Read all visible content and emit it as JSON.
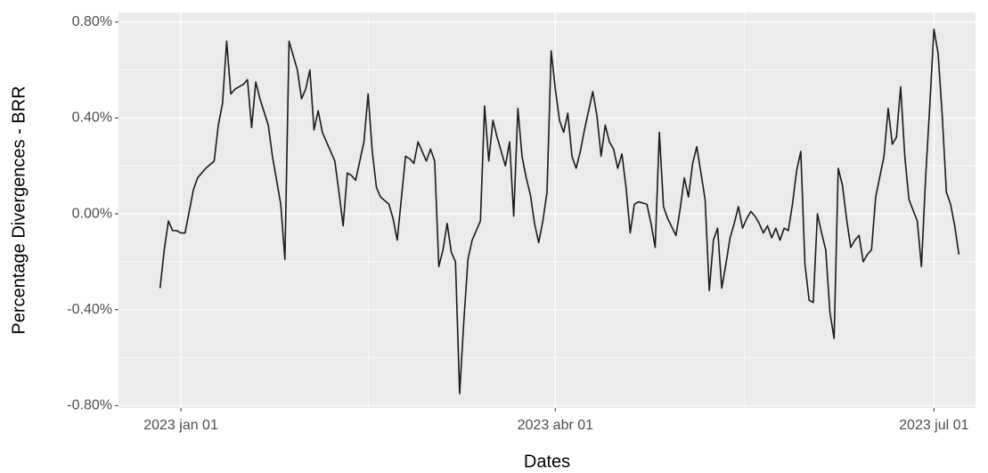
{
  "chart_data": {
    "type": "line",
    "x_label": "Dates",
    "y_label": "Percentage Divergences - BRR",
    "color": "#1a1a1a",
    "grid": true,
    "xlim": [
      "2022-12-17",
      "2023-07-11"
    ],
    "xticks": [
      {
        "value": "2023-01-01",
        "label": "2023 jan 01"
      },
      {
        "value": "2023-04-01",
        "label": "2023 abr 01"
      },
      {
        "value": "2023-07-01",
        "label": "2023 jul 01"
      }
    ],
    "ylim": [
      -0.81,
      0.84
    ],
    "yticks": [
      {
        "value": -0.8,
        "label": "-0.80%"
      },
      {
        "value": -0.4,
        "label": "-0.40%"
      },
      {
        "value": 0,
        "label": "0.00%"
      },
      {
        "value": 0.4,
        "label": "0.40%"
      },
      {
        "value": 0.8,
        "label": "0.80%"
      }
    ],
    "x": [
      "2022-12-27",
      "2022-12-28",
      "2022-12-29",
      "2022-12-30",
      "2022-12-31",
      "2023-01-01",
      "2023-01-02",
      "2023-01-04",
      "2023-01-05",
      "2023-01-07",
      "2023-01-09",
      "2023-01-10",
      "2023-01-11",
      "2023-01-12",
      "2023-01-13",
      "2023-01-14",
      "2023-01-16",
      "2023-01-17",
      "2023-01-18",
      "2023-01-19",
      "2023-01-20",
      "2023-01-22",
      "2023-01-23",
      "2023-01-25",
      "2023-01-26",
      "2023-01-27",
      "2023-01-29",
      "2023-01-30",
      "2023-01-31",
      "2023-02-01",
      "2023-02-02",
      "2023-02-03",
      "2023-02-04",
      "2023-02-05",
      "2023-02-07",
      "2023-02-08",
      "2023-02-09",
      "2023-02-10",
      "2023-02-11",
      "2023-02-12",
      "2023-02-14",
      "2023-02-15",
      "2023-02-16",
      "2023-02-17",
      "2023-02-18",
      "2023-02-20",
      "2023-02-21",
      "2023-02-22",
      "2023-02-24",
      "2023-02-25",
      "2023-02-26",
      "2023-02-27",
      "2023-02-28",
      "2023-03-01",
      "2023-03-02",
      "2023-03-03",
      "2023-03-04",
      "2023-03-05",
      "2023-03-06",
      "2023-03-07",
      "2023-03-08",
      "2023-03-09",
      "2023-03-10",
      "2023-03-11",
      "2023-03-12",
      "2023-03-14",
      "2023-03-15",
      "2023-03-16",
      "2023-03-17",
      "2023-03-18",
      "2023-03-19",
      "2023-03-20",
      "2023-03-21",
      "2023-03-22",
      "2023-03-23",
      "2023-03-24",
      "2023-03-25",
      "2023-03-26",
      "2023-03-27",
      "2023-03-28",
      "2023-03-29",
      "2023-03-30",
      "2023-03-31",
      "2023-04-01",
      "2023-04-02",
      "2023-04-03",
      "2023-04-04",
      "2023-04-05",
      "2023-04-06",
      "2023-04-07",
      "2023-04-08",
      "2023-04-10",
      "2023-04-11",
      "2023-04-12",
      "2023-04-13",
      "2023-04-14",
      "2023-04-15",
      "2023-04-16",
      "2023-04-17",
      "2023-04-18",
      "2023-04-19",
      "2023-04-20",
      "2023-04-21",
      "2023-04-23",
      "2023-04-24",
      "2023-04-25",
      "2023-04-26",
      "2023-04-27",
      "2023-04-28",
      "2023-04-30",
      "2023-05-01",
      "2023-05-02",
      "2023-05-03",
      "2023-05-04",
      "2023-05-05",
      "2023-05-06",
      "2023-05-07",
      "2023-05-08",
      "2023-05-09",
      "2023-05-10",
      "2023-05-11",
      "2023-05-12",
      "2023-05-13",
      "2023-05-14",
      "2023-05-15",
      "2023-05-16",
      "2023-05-17",
      "2023-05-18",
      "2023-05-19",
      "2023-05-20",
      "2023-05-21",
      "2023-05-22",
      "2023-05-23",
      "2023-05-24",
      "2023-05-25",
      "2023-05-26",
      "2023-05-27",
      "2023-05-28",
      "2023-05-29",
      "2023-05-30",
      "2023-05-31",
      "2023-06-01",
      "2023-06-02",
      "2023-06-03",
      "2023-06-04",
      "2023-06-05",
      "2023-06-06",
      "2023-06-07",
      "2023-06-08",
      "2023-06-09",
      "2023-06-10",
      "2023-06-11",
      "2023-06-12",
      "2023-06-13",
      "2023-06-14",
      "2023-06-15",
      "2023-06-16",
      "2023-06-17",
      "2023-06-19",
      "2023-06-20",
      "2023-06-21",
      "2023-06-22",
      "2023-06-23",
      "2023-06-24",
      "2023-06-25",
      "2023-06-27",
      "2023-06-28",
      "2023-06-29",
      "2023-06-30",
      "2023-07-01",
      "2023-07-02",
      "2023-07-03",
      "2023-07-04",
      "2023-07-05",
      "2023-07-06",
      "2023-07-07"
    ],
    "values": [
      -0.31,
      -0.15,
      -0.03,
      -0.07,
      -0.07,
      -0.08,
      -0.08,
      0.1,
      0.15,
      0.19,
      0.22,
      0.37,
      0.46,
      0.72,
      0.5,
      0.52,
      0.54,
      0.56,
      0.36,
      0.55,
      0.48,
      0.37,
      0.24,
      0.04,
      -0.19,
      0.72,
      0.6,
      0.48,
      0.52,
      0.6,
      0.35,
      0.43,
      0.34,
      0.3,
      0.22,
      0.09,
      -0.05,
      0.17,
      0.16,
      0.14,
      0.3,
      0.5,
      0.26,
      0.11,
      0.07,
      0.04,
      -0.02,
      -0.11,
      0.24,
      0.23,
      0.21,
      0.3,
      0.26,
      0.22,
      0.27,
      0.22,
      -0.22,
      -0.15,
      -0.04,
      -0.16,
      -0.2,
      -0.75,
      -0.45,
      -0.19,
      -0.11,
      -0.03,
      0.45,
      0.22,
      0.39,
      0.32,
      0.26,
      0.2,
      0.3,
      -0.01,
      0.44,
      0.24,
      0.15,
      0.08,
      -0.04,
      -0.12,
      -0.03,
      0.09,
      0.68,
      0.52,
      0.39,
      0.34,
      0.42,
      0.24,
      0.19,
      0.26,
      0.35,
      0.51,
      0.41,
      0.24,
      0.37,
      0.3,
      0.27,
      0.19,
      0.25,
      0.11,
      -0.08,
      0.04,
      0.05,
      0.04,
      -0.04,
      -0.14,
      0.34,
      0.03,
      -0.02,
      -0.09,
      0.02,
      0.15,
      0.07,
      0.21,
      0.28,
      0.17,
      0.06,
      -0.32,
      -0.11,
      -0.06,
      -0.31,
      -0.21,
      -0.1,
      -0.04,
      0.03,
      -0.06,
      -0.02,
      0.01,
      -0.01,
      -0.04,
      -0.08,
      -0.05,
      -0.1,
      -0.06,
      -0.11,
      -0.06,
      -0.07,
      0.04,
      0.18,
      0.26,
      -0.21,
      -0.36,
      -0.37,
      0.0,
      -0.08,
      -0.15,
      -0.41,
      -0.52,
      0.19,
      0.12,
      -0.02,
      -0.14,
      -0.11,
      -0.09,
      -0.2,
      -0.17,
      -0.15,
      0.07,
      0.24,
      0.44,
      0.29,
      0.32,
      0.53,
      0.24,
      0.06,
      -0.03,
      -0.22,
      0.15,
      0.45,
      0.77,
      0.67,
      0.41,
      0.09,
      0.04,
      -0.05,
      -0.17
    ]
  }
}
